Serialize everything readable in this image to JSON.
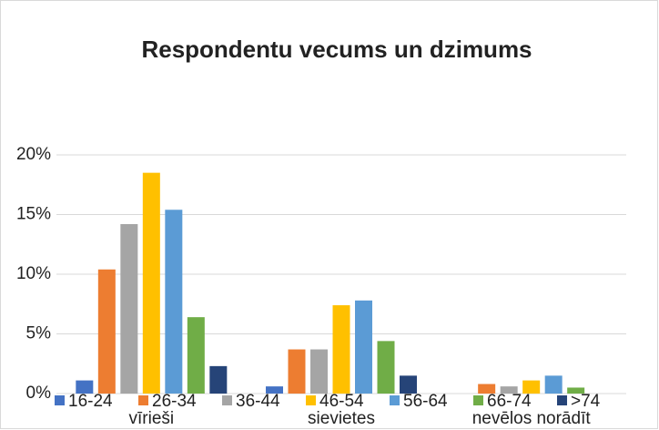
{
  "chart_data": {
    "type": "bar",
    "title": "Respondentu vecums un dzimums",
    "categories": [
      "vīrieši",
      "sievietes",
      "nevēlos norādīt"
    ],
    "series": [
      {
        "name": "16-24",
        "color": "#4472c4",
        "values": [
          1.1,
          0.6,
          0
        ]
      },
      {
        "name": "26-34",
        "color": "#ed7d31",
        "values": [
          10.4,
          3.7,
          0.8
        ]
      },
      {
        "name": "36-44",
        "color": "#a5a5a5",
        "values": [
          14.2,
          3.7,
          0.6
        ]
      },
      {
        "name": "46-54",
        "color": "#ffc000",
        "values": [
          18.5,
          7.4,
          1.1
        ]
      },
      {
        "name": "56-64",
        "color": "#5b9bd5",
        "values": [
          15.4,
          7.8,
          1.5
        ]
      },
      {
        "name": "66-74",
        "color": "#70ad47",
        "values": [
          6.4,
          4.4,
          0.5
        ]
      },
      {
        "name": ">74",
        "color": "#264478",
        "values": [
          2.3,
          1.5,
          0
        ]
      }
    ],
    "ylim": [
      0,
      20
    ],
    "yticks": [
      {
        "value": 0,
        "label": "0%"
      },
      {
        "value": 5,
        "label": "5%"
      },
      {
        "value": 10,
        "label": "10%"
      },
      {
        "value": 15,
        "label": "15%"
      },
      {
        "value": 20,
        "label": "20%"
      }
    ],
    "grid": true,
    "legend": "bottom"
  }
}
